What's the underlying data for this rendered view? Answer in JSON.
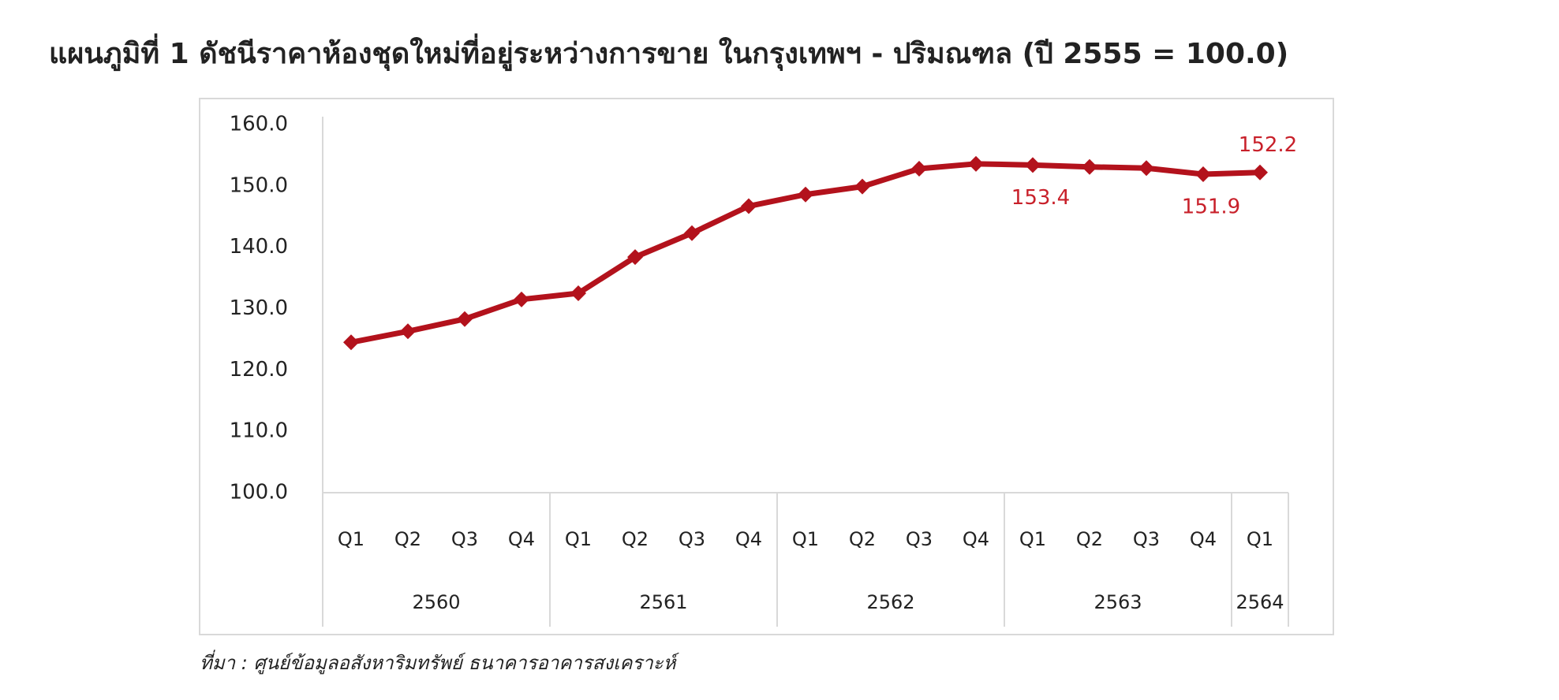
{
  "chart_data": {
    "type": "line",
    "title": "แผนภูมิที่ 1 ดัชนีราคาห้องชุดใหม่ที่อยู่ระหว่างการขาย ในกรุงเทพฯ - ปริมณฑล (ปี 2555 = 100.0)",
    "categories": [
      "Q1",
      "Q2",
      "Q3",
      "Q4",
      "Q1",
      "Q2",
      "Q3",
      "Q4",
      "Q1",
      "Q2",
      "Q3",
      "Q4",
      "Q1",
      "Q2",
      "Q3",
      "Q4",
      "Q1"
    ],
    "groups": [
      "2560",
      "2560",
      "2560",
      "2560",
      "2561",
      "2561",
      "2561",
      "2561",
      "2562",
      "2562",
      "2562",
      "2562",
      "2563",
      "2563",
      "2563",
      "2563",
      "2564"
    ],
    "values": [
      124.5,
      126.3,
      128.3,
      131.5,
      132.5,
      138.4,
      142.3,
      146.7,
      148.6,
      149.9,
      152.8,
      153.6,
      153.4,
      153.1,
      152.9,
      151.9,
      152.2
    ],
    "value_labels": [
      null,
      null,
      null,
      null,
      null,
      null,
      null,
      null,
      null,
      null,
      null,
      null,
      "153.4",
      null,
      null,
      "151.9",
      "152.2"
    ],
    "color": "#b3121c",
    "label_color": "#c8202a",
    "ylim": [
      100,
      160
    ],
    "yticks": [
      {
        "value": 100,
        "label": "100.0"
      },
      {
        "value": 110,
        "label": "110.0"
      },
      {
        "value": 120,
        "label": "120.0"
      },
      {
        "value": 130,
        "label": "130.0"
      },
      {
        "value": 140,
        "label": "140.0"
      },
      {
        "value": 150,
        "label": "150.0"
      },
      {
        "value": 160,
        "label": "160.0"
      }
    ],
    "grid": false,
    "source": "ที่มา : ศูนย์ข้อมูลอสังหาริมทรัพย์ ธนาคารอาคารสงเคราะห์"
  }
}
